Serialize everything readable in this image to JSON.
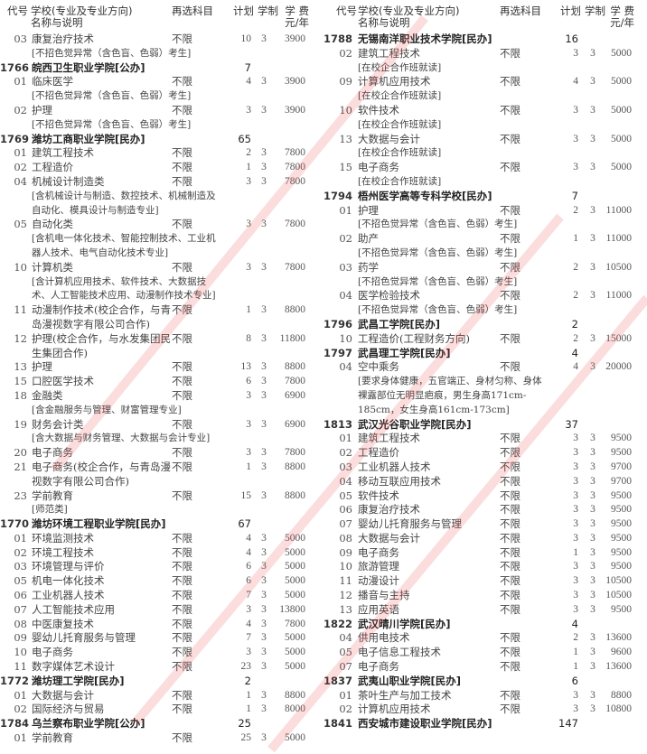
{
  "header": {
    "code": "代号",
    "name": "学校(专业及专业方向)\n名称与说明",
    "subject": "再选科目",
    "plan": "计划",
    "years": "学制",
    "fee": "学 费\n元/年"
  },
  "colors": {
    "watermark": "#e8404a",
    "text": "#333333"
  },
  "left": [
    {
      "t": "m",
      "code": "03",
      "name": "康复治疗技术",
      "subject": "不限",
      "plan": "10",
      "years": "3",
      "fee": "3900"
    },
    {
      "t": "n",
      "name": "[不招色觉异常（含色盲、色弱）考生]"
    },
    {
      "t": "s",
      "code": "1766",
      "name": "皖西卫生职业学院[公办]",
      "plan": "7"
    },
    {
      "t": "m",
      "code": "01",
      "name": "临床医学",
      "subject": "不限",
      "plan": "4",
      "years": "3",
      "fee": "3900"
    },
    {
      "t": "n",
      "name": "[不招色觉异常（含色盲、色弱）考生]"
    },
    {
      "t": "m",
      "code": "02",
      "name": "护理",
      "subject": "不限",
      "plan": "3",
      "years": "3",
      "fee": "3900"
    },
    {
      "t": "n",
      "name": "[不招色觉异常（含色盲、色弱）考生]"
    },
    {
      "t": "s",
      "code": "1769",
      "name": "潍坊工商职业学院[民办]",
      "plan": "65"
    },
    {
      "t": "m",
      "code": "01",
      "name": "建筑工程技术",
      "subject": "不限",
      "plan": "2",
      "years": "3",
      "fee": "7800"
    },
    {
      "t": "m",
      "code": "02",
      "name": "工程造价",
      "subject": "不限",
      "plan": "1",
      "years": "3",
      "fee": "7800"
    },
    {
      "t": "m",
      "code": "04",
      "name": "机械设计制造类",
      "subject": "不限",
      "plan": "3",
      "years": "3",
      "fee": "7800"
    },
    {
      "t": "n",
      "name": "[含机械设计与制造、数控技术、机械制造及\n自动化、模具设计与制造专业]"
    },
    {
      "t": "m",
      "code": "05",
      "name": "自动化类",
      "subject": "不限",
      "plan": "3",
      "years": "3",
      "fee": "7800"
    },
    {
      "t": "n",
      "name": "[含机电一体化技术、智能控制技术、工业机\n器人技术、电气自动化技术专业]"
    },
    {
      "t": "m",
      "code": "10",
      "name": "计算机类",
      "subject": "不限",
      "plan": "3",
      "years": "3",
      "fee": "7800"
    },
    {
      "t": "n",
      "name": "[含计算机应用技术、软件技术、大数据技\n术、人工智能技术应用、动漫制作技术专业]"
    },
    {
      "t": "m",
      "code": "11",
      "name": "动漫制作技术(校企合作，与青\n岛漫视数字有限公司合作)",
      "subject": "不限",
      "plan": "1",
      "years": "3",
      "fee": "8800"
    },
    {
      "t": "m",
      "code": "12",
      "name": "护理(校企合作，与水发集团民\n生集团合作)",
      "subject": "不限",
      "plan": "8",
      "years": "3",
      "fee": "11800"
    },
    {
      "t": "m",
      "code": "13",
      "name": "护理",
      "subject": "不限",
      "plan": "13",
      "years": "3",
      "fee": "8800"
    },
    {
      "t": "m",
      "code": "15",
      "name": "口腔医学技术",
      "subject": "不限",
      "plan": "6",
      "years": "3",
      "fee": "7800"
    },
    {
      "t": "m",
      "code": "18",
      "name": "金融类",
      "subject": "不限",
      "plan": "3",
      "years": "3",
      "fee": "6900"
    },
    {
      "t": "n",
      "name": "[含金融服务与管理、财富管理专业]"
    },
    {
      "t": "m",
      "code": "19",
      "name": "财务会计类",
      "subject": "不限",
      "plan": "3",
      "years": "3",
      "fee": "6900"
    },
    {
      "t": "n",
      "name": "[含大数据与财务管理、大数据与会计专业]"
    },
    {
      "t": "m",
      "code": "20",
      "name": "电子商务",
      "subject": "不限",
      "plan": "3",
      "years": "3",
      "fee": "7800"
    },
    {
      "t": "m",
      "code": "21",
      "name": "电子商务(校企合作，与青岛漫\n视数字有限公司合作)",
      "subject": "不限",
      "plan": "1",
      "years": "3",
      "fee": "8800"
    },
    {
      "t": "m",
      "code": "23",
      "name": "学前教育",
      "subject": "不限",
      "plan": "15",
      "years": "3",
      "fee": "8800"
    },
    {
      "t": "n",
      "name": "[师范类]"
    },
    {
      "t": "s",
      "code": "1770",
      "name": "潍坊环境工程职业学院[民办]",
      "plan": "67"
    },
    {
      "t": "m",
      "code": "01",
      "name": "环境监测技术",
      "subject": "不限",
      "plan": "4",
      "years": "3",
      "fee": "5000"
    },
    {
      "t": "m",
      "code": "02",
      "name": "环境工程技术",
      "subject": "不限",
      "plan": "4",
      "years": "3",
      "fee": "5000"
    },
    {
      "t": "m",
      "code": "03",
      "name": "环境管理与评价",
      "subject": "不限",
      "plan": "6",
      "years": "3",
      "fee": "5000"
    },
    {
      "t": "m",
      "code": "05",
      "name": "机电一体化技术",
      "subject": "不限",
      "plan": "6",
      "years": "3",
      "fee": "5000"
    },
    {
      "t": "m",
      "code": "06",
      "name": "工业机器人技术",
      "subject": "不限",
      "plan": "7",
      "years": "3",
      "fee": "5000"
    },
    {
      "t": "m",
      "code": "07",
      "name": "人工智能技术应用",
      "subject": "不限",
      "plan": "3",
      "years": "3",
      "fee": "13800"
    },
    {
      "t": "m",
      "code": "08",
      "name": "中医康复技术",
      "subject": "不限",
      "plan": "4",
      "years": "3",
      "fee": "7800"
    },
    {
      "t": "m",
      "code": "09",
      "name": "婴幼儿托育服务与管理",
      "subject": "不限",
      "plan": "7",
      "years": "3",
      "fee": "5000"
    },
    {
      "t": "m",
      "code": "10",
      "name": "电子商务",
      "subject": "不限",
      "plan": "3",
      "years": "3",
      "fee": "5000"
    },
    {
      "t": "m",
      "code": "11",
      "name": "数字媒体艺术设计",
      "subject": "不限",
      "plan": "23",
      "years": "3",
      "fee": "5000"
    },
    {
      "t": "s",
      "code": "1772",
      "name": "潍坊理工学院[民办]",
      "plan": "2"
    },
    {
      "t": "m",
      "code": "01",
      "name": "大数据与会计",
      "subject": "不限",
      "plan": "1",
      "years": "3",
      "fee": "8800"
    },
    {
      "t": "m",
      "code": "02",
      "name": "国际经济与贸易",
      "subject": "不限",
      "plan": "1",
      "years": "3",
      "fee": "8000"
    },
    {
      "t": "s",
      "code": "1784",
      "name": "乌兰察布职业学院[公办]",
      "plan": "25"
    },
    {
      "t": "m",
      "code": "01",
      "name": "学前教育",
      "subject": "不限",
      "plan": "25",
      "years": "3",
      "fee": "5000"
    }
  ],
  "right": [
    {
      "t": "s",
      "code": "1788",
      "name": "无锡南洋职业技术学院[民办]",
      "plan": "16"
    },
    {
      "t": "m",
      "code": "02",
      "name": "建筑工程技术",
      "subject": "不限",
      "plan": "3",
      "years": "3",
      "fee": "5000"
    },
    {
      "t": "n",
      "name": "[在校企合作班就读]"
    },
    {
      "t": "m",
      "code": "09",
      "name": "计算机应用技术",
      "subject": "不限",
      "plan": "4",
      "years": "3",
      "fee": "5000"
    },
    {
      "t": "n",
      "name": "[在校企合作班就读]"
    },
    {
      "t": "m",
      "code": "10",
      "name": "软件技术",
      "subject": "不限",
      "plan": "3",
      "years": "3",
      "fee": "5000"
    },
    {
      "t": "n",
      "name": "[在校企合作班就读]"
    },
    {
      "t": "m",
      "code": "13",
      "name": "大数据与会计",
      "subject": "不限",
      "plan": "3",
      "years": "3",
      "fee": "5000"
    },
    {
      "t": "n",
      "name": "[在校企合作班就读]"
    },
    {
      "t": "m",
      "code": "15",
      "name": "电子商务",
      "subject": "不限",
      "plan": "3",
      "years": "3",
      "fee": "5000"
    },
    {
      "t": "n",
      "name": "[在校企合作班就读]"
    },
    {
      "t": "s",
      "code": "1794",
      "name": "梧州医学高等专科学校[民办]",
      "plan": "7"
    },
    {
      "t": "m",
      "code": "01",
      "name": "护理",
      "subject": "不限",
      "plan": "2",
      "years": "3",
      "fee": "11000"
    },
    {
      "t": "n",
      "name": "[不招色觉异常（含色盲、色弱）考生]"
    },
    {
      "t": "m",
      "code": "02",
      "name": "助产",
      "subject": "不限",
      "plan": "1",
      "years": "3",
      "fee": "11000"
    },
    {
      "t": "n",
      "name": "[不招色觉异常（含色盲、色弱）考生]"
    },
    {
      "t": "m",
      "code": "03",
      "name": "药学",
      "subject": "不限",
      "plan": "2",
      "years": "3",
      "fee": "10500"
    },
    {
      "t": "n",
      "name": "[不招色觉异常（含色盲、色弱）考生]"
    },
    {
      "t": "m",
      "code": "04",
      "name": "医学检验技术",
      "subject": "不限",
      "plan": "2",
      "years": "3",
      "fee": "11000"
    },
    {
      "t": "n",
      "name": "[不招色觉异常（含色盲、色弱）考生]"
    },
    {
      "t": "s",
      "code": "1796",
      "name": "武昌工学院[民办]",
      "plan": "2"
    },
    {
      "t": "m",
      "code": "10",
      "name": "工程造价(工程财务方向)",
      "subject": "不限",
      "plan": "2",
      "years": "3",
      "fee": "15000"
    },
    {
      "t": "s",
      "code": "1797",
      "name": "武昌理工学院[民办]",
      "plan": "4"
    },
    {
      "t": "m",
      "code": "04",
      "name": "空中乘务",
      "subject": "不限",
      "plan": "4",
      "years": "3",
      "fee": "20000"
    },
    {
      "t": "n",
      "name": "[要求身体健康，五官端正、身材匀称、身体\n裸露部位无明显疤痕，男生身高171cm-\n185cm，女生身高161cm-173cm]"
    },
    {
      "t": "s",
      "code": "1813",
      "name": "武汉光谷职业学院[民办]",
      "plan": "37"
    },
    {
      "t": "m",
      "code": "01",
      "name": "建筑工程技术",
      "subject": "不限",
      "plan": "3",
      "years": "3",
      "fee": "9500"
    },
    {
      "t": "m",
      "code": "02",
      "name": "工程造价",
      "subject": "不限",
      "plan": "3",
      "years": "3",
      "fee": "9500"
    },
    {
      "t": "m",
      "code": "03",
      "name": "工业机器人技术",
      "subject": "不限",
      "plan": "3",
      "years": "3",
      "fee": "9700"
    },
    {
      "t": "m",
      "code": "04",
      "name": "移动互联应用技术",
      "subject": "不限",
      "plan": "3",
      "years": "3",
      "fee": "9700"
    },
    {
      "t": "m",
      "code": "05",
      "name": "软件技术",
      "subject": "不限",
      "plan": "3",
      "years": "3",
      "fee": "9500"
    },
    {
      "t": "m",
      "code": "06",
      "name": "康复治疗技术",
      "subject": "不限",
      "plan": "3",
      "years": "3",
      "fee": "9500"
    },
    {
      "t": "m",
      "code": "07",
      "name": "婴幼儿托育服务与管理",
      "subject": "不限",
      "plan": "3",
      "years": "3",
      "fee": "9500"
    },
    {
      "t": "m",
      "code": "08",
      "name": "大数据与会计",
      "subject": "不限",
      "plan": "3",
      "years": "3",
      "fee": "9500"
    },
    {
      "t": "m",
      "code": "09",
      "name": "电子商务",
      "subject": "不限",
      "plan": "1",
      "years": "3",
      "fee": "9500"
    },
    {
      "t": "m",
      "code": "10",
      "name": "旅游管理",
      "subject": "不限",
      "plan": "3",
      "years": "3",
      "fee": "9500"
    },
    {
      "t": "m",
      "code": "11",
      "name": "动漫设计",
      "subject": "不限",
      "plan": "3",
      "years": "3",
      "fee": "10500"
    },
    {
      "t": "m",
      "code": "12",
      "name": "播音与主持",
      "subject": "不限",
      "plan": "3",
      "years": "3",
      "fee": "10500"
    },
    {
      "t": "m",
      "code": "13",
      "name": "应用英语",
      "subject": "不限",
      "plan": "3",
      "years": "3",
      "fee": "9500"
    },
    {
      "t": "s",
      "code": "1822",
      "name": "武汉晴川学院[民办]",
      "plan": "4"
    },
    {
      "t": "m",
      "code": "04",
      "name": "供用电技术",
      "subject": "不限",
      "plan": "2",
      "years": "3",
      "fee": "13600"
    },
    {
      "t": "m",
      "code": "05",
      "name": "电子信息工程技术",
      "subject": "不限",
      "plan": "1",
      "years": "3",
      "fee": "9600"
    },
    {
      "t": "m",
      "code": "07",
      "name": "电子商务",
      "subject": "不限",
      "plan": "1",
      "years": "3",
      "fee": "13600"
    },
    {
      "t": "s",
      "code": "1837",
      "name": "武夷山职业学院[民办]",
      "plan": "6"
    },
    {
      "t": "m",
      "code": "01",
      "name": "茶叶生产与加工技术",
      "subject": "不限",
      "plan": "3",
      "years": "3",
      "fee": "8800"
    },
    {
      "t": "m",
      "code": "02",
      "name": "计算机应用技术",
      "subject": "不限",
      "plan": "3",
      "years": "3",
      "fee": "10800"
    },
    {
      "t": "s",
      "code": "1841",
      "name": "西安城市建设职业学院[民办]",
      "plan": "147"
    }
  ]
}
